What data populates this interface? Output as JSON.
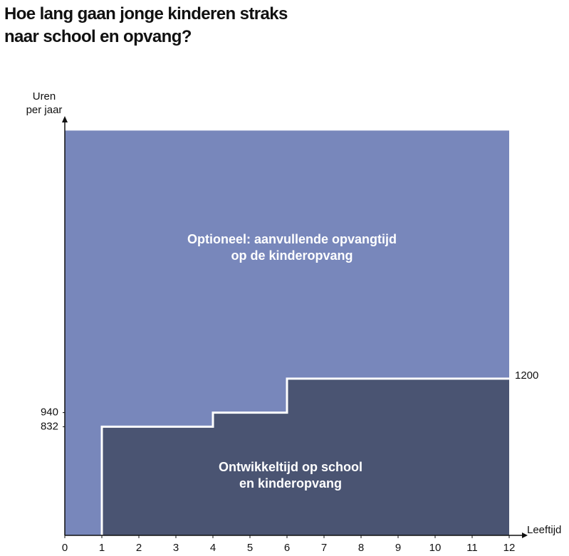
{
  "chart_data": {
    "type": "step-area",
    "title": "Hoe lang gaan jonge kinderen straks\nnaar school en opvang?",
    "y_label": "Uren\nper jaar",
    "x_label": "Leeftijd",
    "xlim": [
      0,
      12
    ],
    "xticks": [
      0,
      1,
      2,
      3,
      4,
      5,
      6,
      7,
      8,
      9,
      10,
      11,
      12
    ],
    "ylim": [
      0,
      3200
    ],
    "yticks": [
      832,
      940
    ],
    "series": [
      {
        "name": "Ontwikkeltijd op school\nen kinderopvang",
        "color": "#4a5472",
        "x": [
          1,
          4,
          6,
          12
        ],
        "values": [
          832,
          940,
          1200,
          1200
        ]
      },
      {
        "name": "Optioneel: aanvullende opvangtijd\nop de kinderopvang",
        "color": "#7887bb",
        "x": [
          0,
          12
        ],
        "values": [
          3100,
          3100
        ]
      }
    ]
  }
}
